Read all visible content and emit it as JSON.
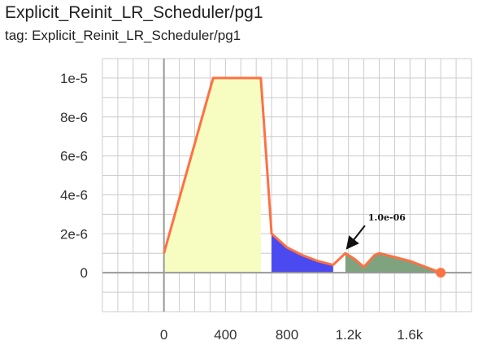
{
  "header": {
    "title": "Explicit_Reinit_LR_Scheduler/pg1",
    "tag_line": "tag: Explicit_Reinit_LR_Scheduler/pg1"
  },
  "chart_data": {
    "type": "line",
    "x_ticks": [
      0,
      400,
      800,
      1200,
      1600
    ],
    "x_tick_labels": [
      "0",
      "400",
      "800",
      "1.2k",
      "1.6k"
    ],
    "y_ticks": [
      0,
      2e-06,
      4e-06,
      6e-06,
      8e-06,
      1e-05
    ],
    "y_tick_labels": [
      "0",
      "2e-6",
      "4e-6",
      "6e-6",
      "8e-6",
      "1e-5"
    ],
    "xlim": [
      -400,
      2000
    ],
    "ylim": [
      -2e-06,
      1.1e-05
    ],
    "grid": true,
    "series": [
      {
        "color": "#ff7043",
        "x": [
          0,
          320,
          630,
          700,
          800,
          900,
          1000,
          1100,
          1180,
          1240,
          1300,
          1370,
          1400,
          1500,
          1600,
          1700,
          1800
        ],
        "y": [
          1e-06,
          1e-05,
          1e-05,
          2e-06,
          1.3e-06,
          9e-07,
          6e-07,
          4e-07,
          1e-06,
          7e-07,
          3e-07,
          9e-07,
          1e-06,
          8e-07,
          6e-07,
          3e-07,
          0.0
        ]
      }
    ],
    "shaded_regions": [
      {
        "color": "#f7fcc0",
        "x_start": 0,
        "x_end": 630
      },
      {
        "color": "#4a4af0",
        "x_start": 700,
        "x_end": 1100
      },
      {
        "color": "#7fa37f",
        "x_start": 1180,
        "x_end": 1800
      }
    ],
    "end_marker": {
      "x": 1800,
      "y": 0.0,
      "color": "#ff7043"
    },
    "annotations": [
      {
        "text": "1.0e-06",
        "x": 1180,
        "y": 1e-06
      }
    ]
  }
}
